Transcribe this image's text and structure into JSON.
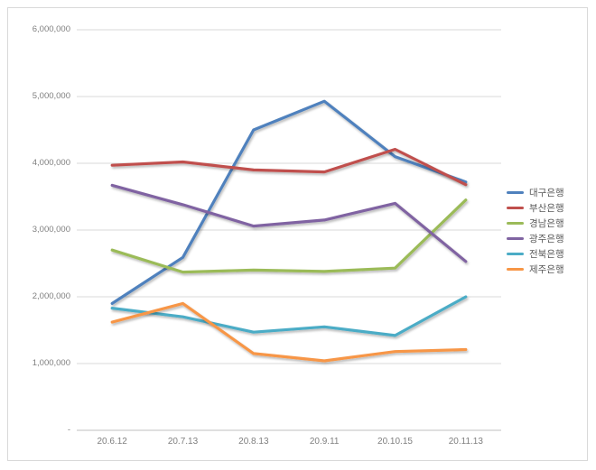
{
  "chart_data": {
    "type": "line",
    "title": "",
    "categories": [
      "20.6.12",
      "20.7.13",
      "20.8.13",
      "20.9.11",
      "20.10.15",
      "20.11.13"
    ],
    "series": [
      {
        "name": "대구은행",
        "color": "#4F81BD",
        "values": [
          1900000,
          2590000,
          4500000,
          4930000,
          4100000,
          3720000
        ]
      },
      {
        "name": "부산은행",
        "color": "#C0504D",
        "values": [
          3970000,
          4020000,
          3900000,
          3870000,
          4210000,
          3680000
        ]
      },
      {
        "name": "경남은행",
        "color": "#9BBB59",
        "values": [
          2700000,
          2370000,
          2400000,
          2380000,
          2430000,
          3450000
        ]
      },
      {
        "name": "광주은행",
        "color": "#8064A2",
        "values": [
          3670000,
          3380000,
          3060000,
          3150000,
          3400000,
          2530000
        ]
      },
      {
        "name": "전북은행",
        "color": "#4BACC6",
        "values": [
          1830000,
          1700000,
          1470000,
          1550000,
          1420000,
          2000000
        ]
      },
      {
        "name": "제주은행",
        "color": "#F79646",
        "values": [
          1620000,
          1900000,
          1150000,
          1040000,
          1180000,
          1210000
        ]
      }
    ],
    "y_tick_labels": [
      "6,000,000",
      "5,000,000",
      "4,000,000",
      "3,000,000",
      "2,000,000",
      "1,000,000",
      "-"
    ],
    "ylim": [
      0,
      6000000
    ],
    "y_tick_interval": 1000000,
    "grid": "horizontal",
    "legend_position": "right",
    "style": {
      "grid_color": "#D9D9D9",
      "axis_line_color": "#BFBFBF",
      "tick_label_color": "#7F7F7F",
      "legend_text_color": "#595959",
      "background": "#FFFFFF"
    }
  }
}
